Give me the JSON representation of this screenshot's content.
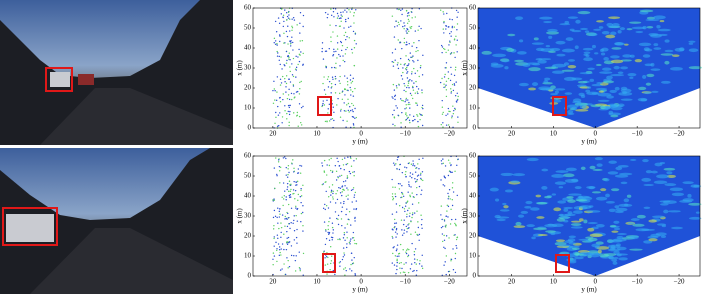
{
  "rows": [
    {
      "lidar": {
        "xlabel": "y (m)",
        "ylabel": "x (m)",
        "xlim": [
          24.5,
          -24
        ],
        "ylim": [
          0,
          60
        ],
        "xticks": [
          20,
          10,
          0,
          {
            "value": -10,
            "label": "−10"
          },
          {
            "value": -20,
            "label": "−20"
          }
        ],
        "yticks": [
          0,
          10,
          20,
          30,
          40,
          50,
          60
        ]
      },
      "radar": {
        "xlabel": "y (m)",
        "ylabel": "x (m)",
        "xlim": [
          28,
          -25
        ],
        "ylim": [
          0,
          60
        ],
        "xticks": [
          20,
          10,
          0,
          {
            "value": -10,
            "label": "−10"
          },
          {
            "value": -20,
            "label": "−20"
          }
        ],
        "yticks": [
          0,
          10,
          20,
          30,
          40,
          50,
          60
        ]
      }
    },
    {
      "lidar": {
        "xlabel": "y (m)",
        "ylabel": "x (m)",
        "xlim": [
          24.5,
          -24
        ],
        "ylim": [
          0,
          60
        ],
        "xticks": [
          20,
          10,
          0,
          {
            "value": -10,
            "label": "−10"
          },
          {
            "value": -20,
            "label": "−20"
          }
        ],
        "yticks": [
          0,
          10,
          20,
          30,
          40,
          50,
          60
        ]
      },
      "radar": {
        "xlabel": "y (m)",
        "ylabel": "x (m)",
        "xlim": [
          28,
          -25
        ],
        "ylim": [
          0,
          60
        ],
        "xticks": [
          20,
          10,
          0,
          {
            "value": -10,
            "label": "−10"
          },
          {
            "value": -20,
            "label": "−20"
          }
        ],
        "yticks": [
          0,
          10,
          20,
          30,
          40,
          50,
          60
        ]
      }
    }
  ]
}
